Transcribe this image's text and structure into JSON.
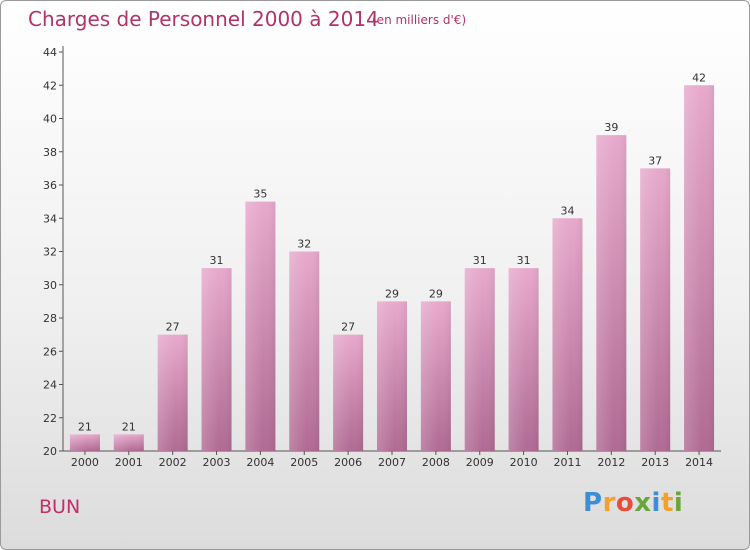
{
  "chart_data": {
    "type": "bar",
    "title": "Charges de Personnel 2000 à 2014",
    "subtitle": "(en milliers d'€)",
    "categories": [
      "2000",
      "2001",
      "2002",
      "2003",
      "2004",
      "2005",
      "2006",
      "2007",
      "2008",
      "2009",
      "2010",
      "2011",
      "2012",
      "2013",
      "2014"
    ],
    "values": [
      21,
      21,
      27,
      31,
      35,
      32,
      27,
      29,
      29,
      31,
      31,
      34,
      39,
      37,
      42
    ],
    "ylim": [
      20,
      44
    ],
    "yticks": [
      20,
      22,
      24,
      26,
      28,
      30,
      32,
      34,
      36,
      38,
      40,
      42,
      44
    ],
    "grid": false,
    "bar_color": "#d88ab6"
  },
  "commune": "BUN",
  "logo": {
    "letters": [
      "P",
      "r",
      "o",
      "x",
      "i",
      "t",
      "i"
    ],
    "colors": [
      "#3a8fd6",
      "#f2a12e",
      "#e84c3d",
      "#6aa63b",
      "#3a8fd6",
      "#f2a12e",
      "#6aa63b"
    ]
  }
}
